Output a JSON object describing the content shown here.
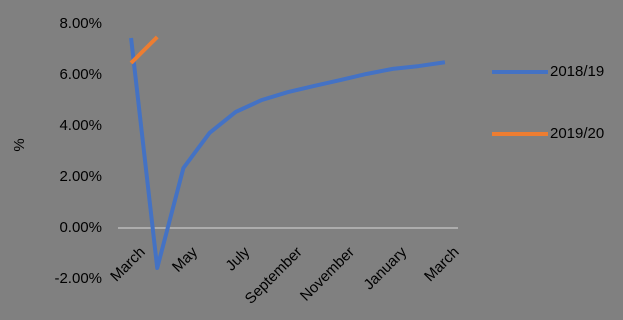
{
  "chart_data": {
    "type": "line",
    "y_label": "%",
    "categories": [
      "March",
      null,
      "May",
      null,
      "July",
      null,
      "September",
      null,
      "November",
      null,
      "January",
      null,
      "March"
    ],
    "series": [
      {
        "name": "2018/19",
        "color": "#4472c4",
        "values": [
          7.45,
          -1.57,
          2.35,
          3.73,
          4.55,
          5.02,
          5.33,
          5.57,
          5.8,
          6.04,
          6.24,
          6.35,
          6.5
        ]
      },
      {
        "name": "2019/20",
        "color": "#ed7d31",
        "values": [
          6.47,
          7.49,
          null,
          null,
          null,
          null,
          null,
          null,
          null,
          null,
          null,
          null,
          null
        ]
      }
    ],
    "ylim": [
      -2,
      8
    ],
    "yticks": [
      {
        "value": -2,
        "label": "-2.00%"
      },
      {
        "value": 0,
        "label": "0.00%"
      },
      {
        "value": 2,
        "label": "2.00%"
      },
      {
        "value": 4,
        "label": "4.00%"
      },
      {
        "value": 6,
        "label": "6.00%"
      },
      {
        "value": 8,
        "label": "8.00%"
      }
    ],
    "grid": false,
    "legend": "right"
  }
}
